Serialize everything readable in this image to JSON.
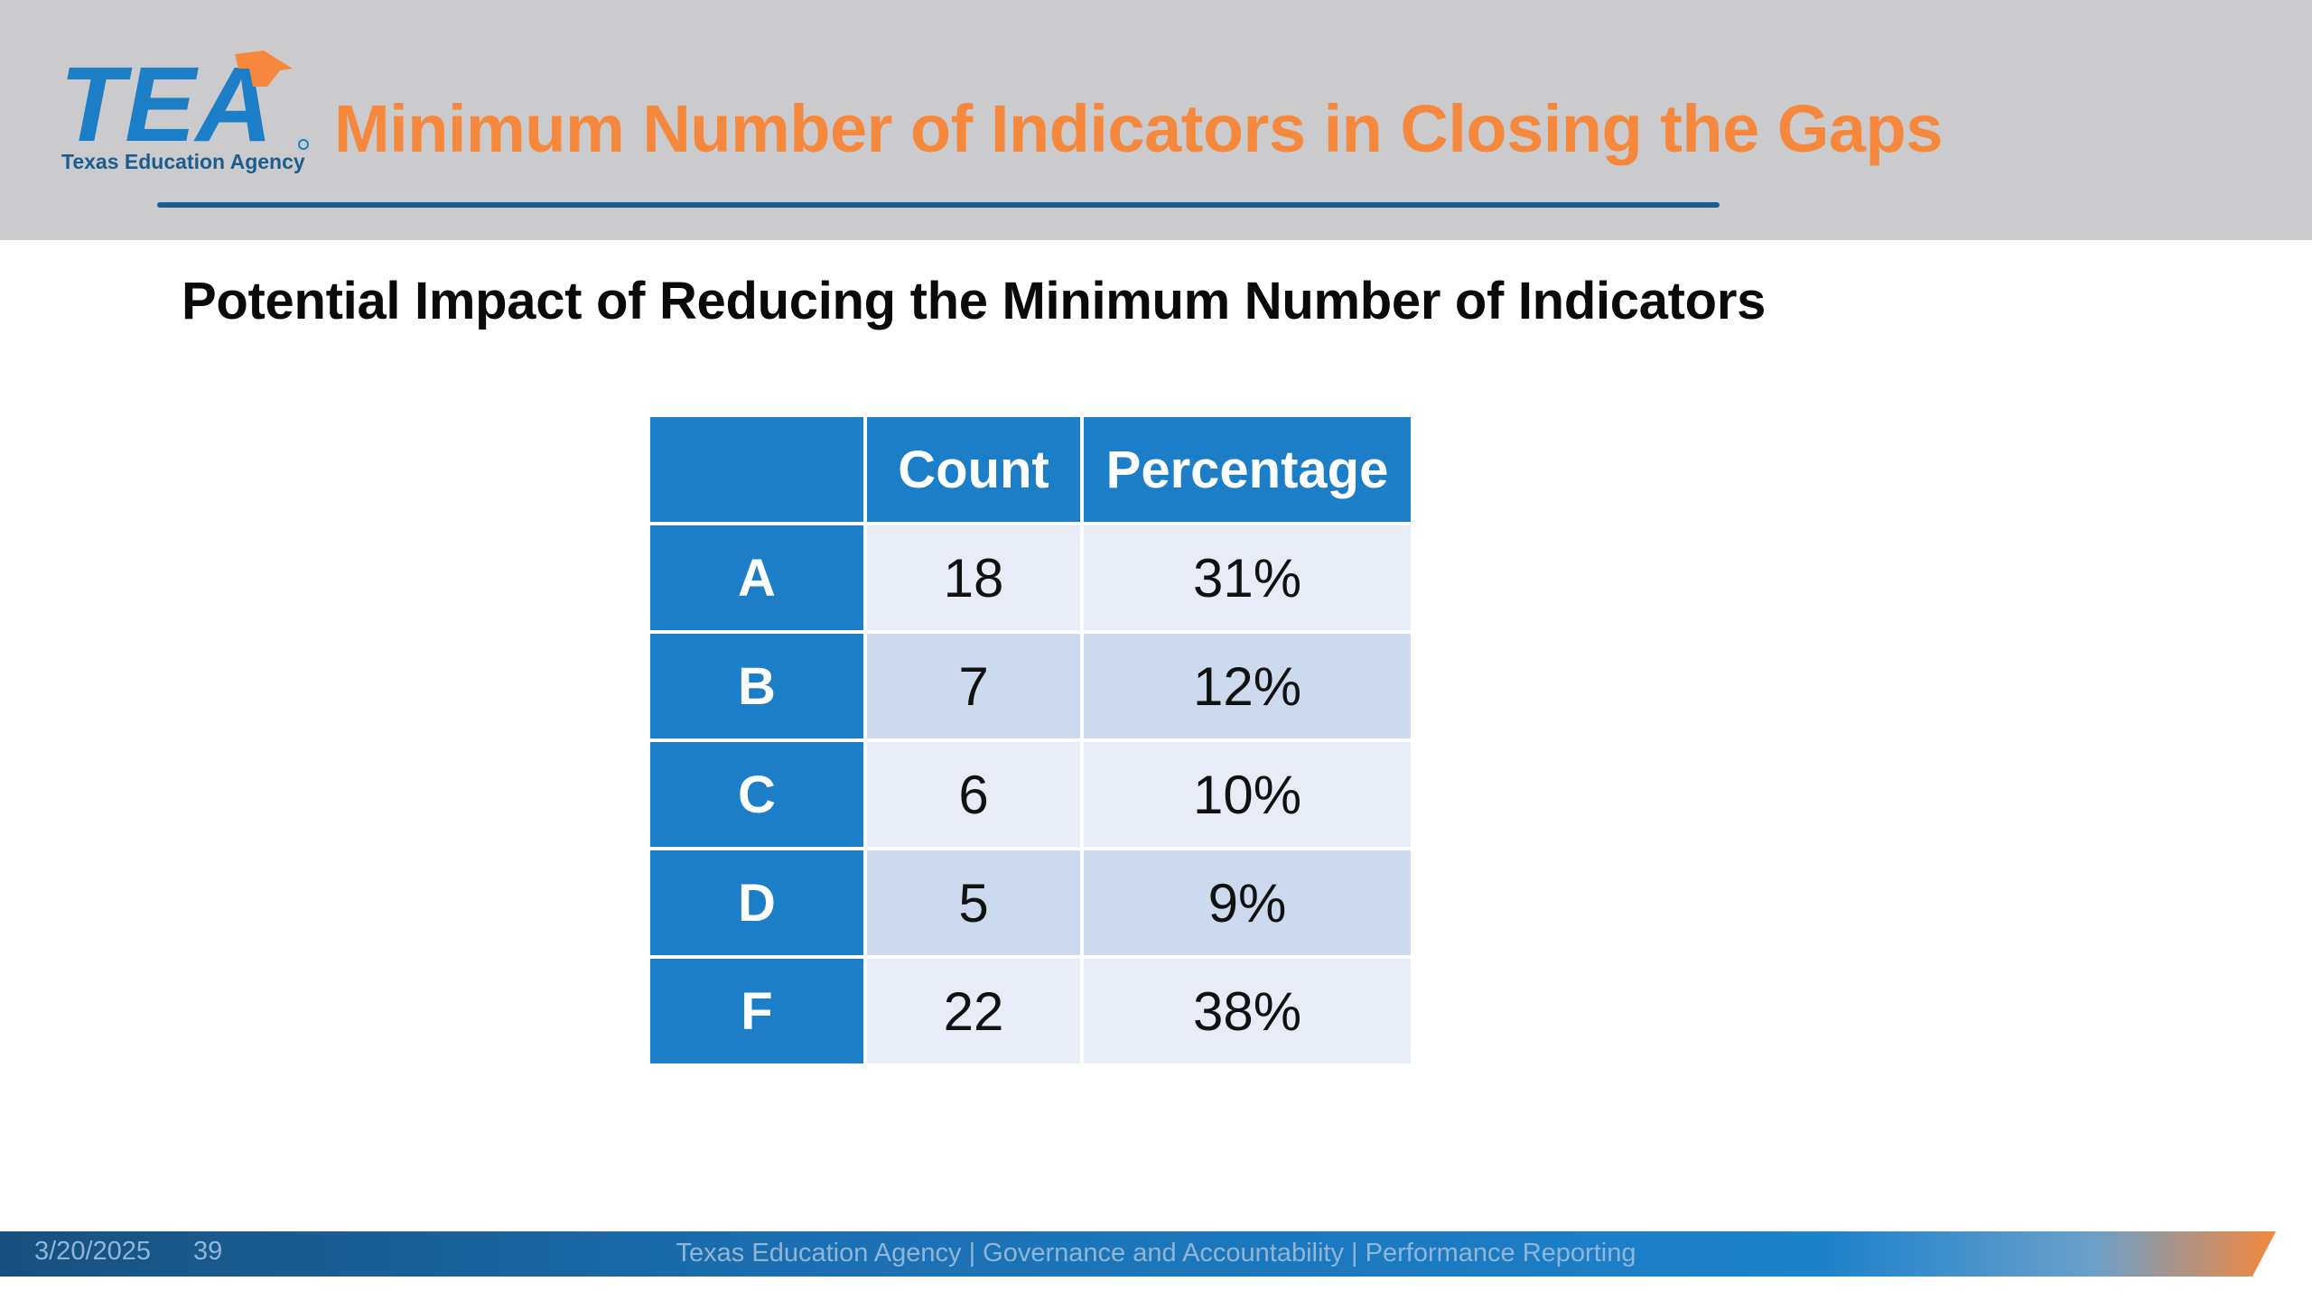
{
  "header": {
    "logo_text": "TEA",
    "logo_subtitle": "Texas Education Agency",
    "title": "Minimum Number of Indicators in Closing the Gaps"
  },
  "subtitle": "Potential Impact of Reducing the Minimum Number of Indicators",
  "table": {
    "columns": [
      "",
      "Count",
      "Percentage"
    ],
    "rows": [
      {
        "label": "A",
        "count": "18",
        "percentage": "31%"
      },
      {
        "label": "B",
        "count": "7",
        "percentage": "12%"
      },
      {
        "label": "C",
        "count": "6",
        "percentage": "10%"
      },
      {
        "label": "D",
        "count": "5",
        "percentage": "9%"
      },
      {
        "label": "F",
        "count": "22",
        "percentage": "38%"
      }
    ]
  },
  "footer": {
    "date": "3/20/2025",
    "page": "39",
    "text": "Texas Education Agency | Governance and Accountability | Performance Reporting"
  },
  "colors": {
    "brand_blue": "#1b7ec6",
    "navy": "#1b5d8f",
    "orange": "#f5883c",
    "header_gray": "#cbcbcd"
  }
}
